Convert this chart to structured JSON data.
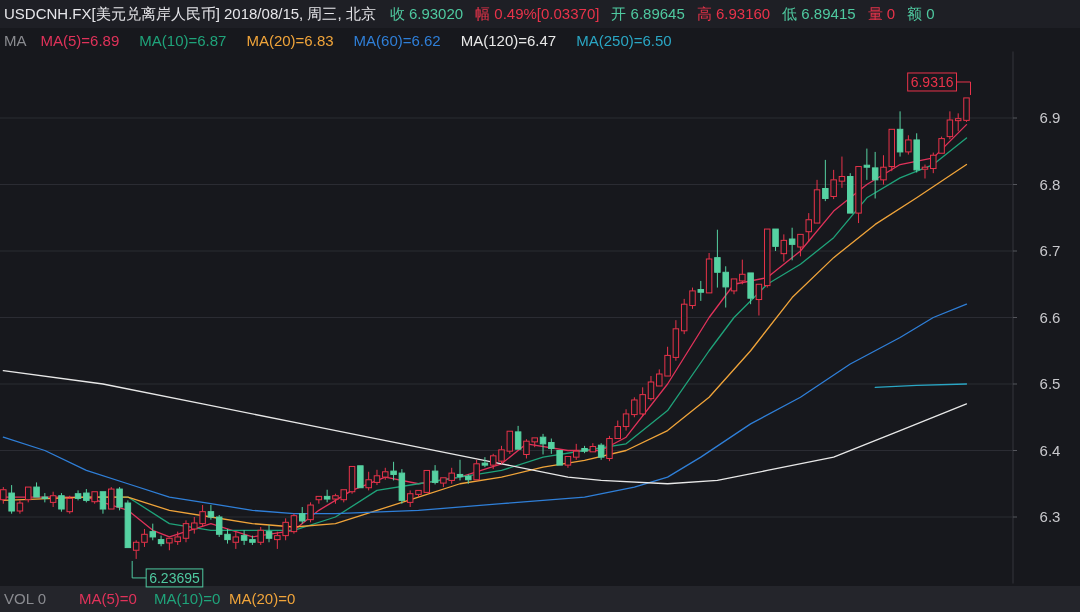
{
  "chart_data": {
    "type": "candlestick",
    "title": "USDCNH.FX[美元兑离岸人民币]  2018/08/15, 周三, 北京",
    "annotations": [
      "收 6.93020",
      "幅 0.49%[0.03370]",
      "开 6.89645",
      "高 6.93160",
      "低 6.89415",
      "量 0",
      "额 0",
      "MA",
      "VOL 0",
      "MA(5)=0",
      "MA(10)=0",
      "MA(20)=0",
      "6.9316",
      "6.23695"
    ],
    "categories": [
      null,
      null,
      null,
      null,
      null,
      null,
      null,
      null,
      null,
      null,
      null,
      null,
      null,
      null,
      null,
      null,
      null,
      null,
      null,
      null,
      null,
      null,
      null,
      null,
      null,
      null,
      null,
      null,
      null,
      null,
      null,
      null,
      null,
      null,
      null,
      null,
      null,
      null,
      null,
      null,
      null,
      null,
      null,
      null,
      null,
      null,
      null,
      null,
      null,
      null,
      null,
      null,
      null,
      null,
      null,
      null,
      null,
      null,
      null,
      null,
      null,
      null,
      null,
      null,
      null,
      null,
      null,
      null,
      null,
      null,
      null,
      null,
      null,
      null,
      null,
      null,
      null,
      null,
      null,
      null,
      null,
      null,
      null,
      null,
      null,
      null,
      null,
      null,
      null,
      null,
      null,
      null,
      null,
      null,
      null,
      null,
      null,
      null,
      null,
      null,
      null,
      null,
      null,
      null,
      null,
      null,
      null,
      null,
      null,
      null,
      null,
      null,
      null,
      null,
      null,
      null,
      null
    ],
    "ohlc": [
      [
        6.326,
        6.345,
        6.32,
        6.341
      ],
      [
        6.336,
        6.348,
        6.305,
        6.309
      ],
      [
        6.309,
        6.325,
        6.305,
        6.321
      ],
      [
        6.326,
        6.347,
        6.322,
        6.345
      ],
      [
        6.345,
        6.352,
        6.328,
        6.33
      ],
      [
        6.33,
        6.336,
        6.322,
        6.328
      ],
      [
        6.322,
        6.338,
        6.315,
        6.332
      ],
      [
        6.332,
        6.336,
        6.308,
        6.312
      ],
      [
        6.308,
        6.332,
        6.305,
        6.328
      ],
      [
        6.335,
        6.34,
        6.325,
        6.328
      ],
      [
        6.336,
        6.342,
        6.322,
        6.325
      ],
      [
        6.323,
        6.34,
        6.32,
        6.338
      ],
      [
        6.338,
        6.34,
        6.305,
        6.312
      ],
      [
        6.312,
        6.345,
        6.31,
        6.342
      ],
      [
        6.342,
        6.345,
        6.31,
        6.315
      ],
      [
        6.321,
        6.325,
        6.253,
        6.254
      ],
      [
        6.25,
        6.265,
        6.23695,
        6.262
      ],
      [
        6.262,
        6.282,
        6.255,
        6.274
      ],
      [
        6.278,
        6.29,
        6.265,
        6.27
      ],
      [
        6.266,
        6.272,
        6.256,
        6.26
      ],
      [
        6.261,
        6.27,
        6.25,
        6.268
      ],
      [
        6.263,
        6.278,
        6.258,
        6.27
      ],
      [
        6.268,
        6.295,
        6.262,
        6.29
      ],
      [
        6.282,
        6.3,
        6.275,
        6.291
      ],
      [
        6.29,
        6.318,
        6.285,
        6.308
      ],
      [
        6.308,
        6.318,
        6.296,
        6.3
      ],
      [
        6.3,
        6.303,
        6.27,
        6.274
      ],
      [
        6.274,
        6.282,
        6.26,
        6.266
      ],
      [
        6.262,
        6.278,
        6.252,
        6.27
      ],
      [
        6.272,
        6.28,
        6.258,
        6.265
      ],
      [
        6.266,
        6.272,
        6.258,
        6.262
      ],
      [
        6.262,
        6.285,
        6.258,
        6.28
      ],
      [
        6.278,
        6.288,
        6.262,
        6.268
      ],
      [
        6.266,
        6.278,
        6.252,
        6.272
      ],
      [
        6.272,
        6.298,
        6.265,
        6.292
      ],
      [
        6.278,
        6.305,
        6.275,
        6.302
      ],
      [
        6.305,
        6.315,
        6.29,
        6.294
      ],
      [
        6.296,
        6.322,
        6.292,
        6.318
      ],
      [
        6.326,
        6.333,
        6.32,
        6.331
      ],
      [
        6.331,
        6.341,
        6.322,
        6.327
      ],
      [
        6.327,
        6.335,
        6.32,
        6.332
      ],
      [
        6.326,
        6.342,
        6.322,
        6.341
      ],
      [
        6.338,
        6.378,
        6.335,
        6.376
      ],
      [
        6.377,
        6.378,
        6.343,
        6.344
      ],
      [
        6.344,
        6.368,
        6.34,
        6.356
      ],
      [
        6.352,
        6.371,
        6.348,
        6.362
      ],
      [
        6.36,
        6.374,
        6.356,
        6.368
      ],
      [
        6.369,
        6.383,
        6.355,
        6.364
      ],
      [
        6.366,
        6.372,
        6.32,
        6.325
      ],
      [
        6.322,
        6.34,
        6.315,
        6.335
      ],
      [
        6.334,
        6.342,
        6.33,
        6.34
      ],
      [
        6.337,
        6.372,
        6.335,
        6.37
      ],
      [
        6.369,
        6.378,
        6.349,
        6.352
      ],
      [
        6.351,
        6.36,
        6.345,
        6.359
      ],
      [
        6.355,
        6.374,
        6.35,
        6.366
      ],
      [
        6.364,
        6.386,
        6.355,
        6.361
      ],
      [
        6.361,
        6.364,
        6.35,
        6.356
      ],
      [
        6.356,
        6.386,
        6.354,
        6.38
      ],
      [
        6.381,
        6.39,
        6.375,
        6.378
      ],
      [
        6.378,
        6.395,
        6.372,
        6.392
      ],
      [
        6.384,
        6.407,
        6.38,
        6.401
      ],
      [
        6.399,
        6.43,
        6.395,
        6.429
      ],
      [
        6.428,
        6.437,
        6.4,
        6.402
      ],
      [
        6.394,
        6.417,
        6.388,
        6.414
      ],
      [
        6.413,
        6.42,
        6.405,
        6.419
      ],
      [
        6.42,
        6.425,
        6.394,
        6.41
      ],
      [
        6.412,
        6.418,
        6.395,
        6.403
      ],
      [
        6.4,
        6.402,
        6.376,
        6.378
      ],
      [
        6.378,
        6.393,
        6.374,
        6.391
      ],
      [
        6.39,
        6.41,
        6.386,
        6.399
      ],
      [
        6.403,
        6.407,
        6.396,
        6.399
      ],
      [
        6.398,
        6.411,
        6.396,
        6.406
      ],
      [
        6.408,
        6.411,
        6.386,
        6.39
      ],
      [
        6.388,
        6.422,
        6.384,
        6.418
      ],
      [
        6.418,
        6.445,
        6.416,
        6.436
      ],
      [
        6.436,
        6.462,
        6.43,
        6.455
      ],
      [
        6.454,
        6.48,
        6.45,
        6.476
      ],
      [
        6.455,
        6.495,
        6.452,
        6.484
      ],
      [
        6.478,
        6.512,
        6.475,
        6.503
      ],
      [
        6.497,
        6.522,
        6.495,
        6.515
      ],
      [
        6.512,
        6.556,
        6.51,
        6.543
      ],
      [
        6.54,
        6.596,
        6.535,
        6.583
      ],
      [
        6.58,
        6.628,
        6.575,
        6.62
      ],
      [
        6.618,
        6.645,
        6.613,
        6.64
      ],
      [
        6.642,
        6.655,
        6.625,
        6.638
      ],
      [
        6.637,
        6.697,
        6.635,
        6.688
      ],
      [
        6.69,
        6.732,
        6.645,
        6.668
      ],
      [
        6.668,
        6.677,
        6.615,
        6.646
      ],
      [
        6.64,
        6.66,
        6.635,
        6.658
      ],
      [
        6.655,
        6.687,
        6.65,
        6.665
      ],
      [
        6.667,
        6.668,
        6.62,
        6.629
      ],
      [
        6.627,
        6.65,
        6.603,
        6.65
      ],
      [
        6.648,
        6.735,
        6.645,
        6.733
      ],
      [
        6.733,
        6.735,
        6.7,
        6.707
      ],
      [
        6.696,
        6.725,
        6.684,
        6.716
      ],
      [
        6.718,
        6.735,
        6.686,
        6.71
      ],
      [
        6.706,
        6.726,
        6.692,
        6.725
      ],
      [
        6.729,
        6.757,
        6.714,
        6.747
      ],
      [
        6.742,
        6.807,
        6.74,
        6.792
      ],
      [
        6.794,
        6.837,
        6.775,
        6.779
      ],
      [
        6.782,
        6.822,
        6.778,
        6.807
      ],
      [
        6.805,
        6.842,
        6.795,
        6.812
      ],
      [
        6.812,
        6.817,
        6.755,
        6.757
      ],
      [
        6.757,
        6.828,
        6.742,
        6.827
      ],
      [
        6.829,
        6.854,
        6.807,
        6.826
      ],
      [
        6.825,
        6.849,
        6.779,
        6.807
      ],
      [
        6.807,
        6.844,
        6.8,
        6.826
      ],
      [
        6.827,
        6.885,
        6.82,
        6.883
      ],
      [
        6.883,
        6.91,
        6.842,
        6.849
      ],
      [
        6.849,
        6.874,
        6.845,
        6.867
      ],
      [
        6.867,
        6.877,
        6.818,
        6.822
      ],
      [
        6.823,
        6.83,
        6.809,
        6.826
      ],
      [
        6.824,
        6.848,
        6.817,
        6.844
      ],
      [
        6.847,
        6.872,
        6.845,
        6.869
      ],
      [
        6.872,
        6.91,
        6.868,
        6.897
      ],
      [
        6.896,
        6.907,
        6.88,
        6.899
      ],
      [
        6.89645,
        6.9316,
        6.89415,
        6.9302
      ]
    ],
    "series": [
      {
        "name": "MA(5)=6.89",
        "type": "line",
        "color": "#e0325a",
        "values": [
          6.33,
          null,
          null,
          null,
          null,
          6.33,
          null,
          null,
          null,
          null,
          6.33,
          null,
          null,
          null,
          null,
          6.31,
          null,
          null,
          6.28,
          null,
          6.27,
          null,
          null,
          null,
          null,
          6.29,
          null,
          null,
          null,
          null,
          6.27,
          null,
          null,
          null,
          null,
          6.28,
          null,
          null,
          6.31,
          null,
          null,
          null,
          6.34,
          null,
          null,
          null,
          6.36,
          null,
          null,
          null,
          6.35,
          null,
          null,
          null,
          null,
          6.36,
          null,
          null,
          null,
          null,
          6.38,
          null,
          null,
          6.41,
          null,
          null,
          null,
          null,
          6.4,
          null,
          null,
          null,
          6.4,
          null,
          null,
          6.42,
          null,
          null,
          null,
          null,
          6.5,
          null,
          null,
          null,
          null,
          6.6,
          null,
          null,
          6.65,
          null,
          null,
          null,
          6.66,
          null,
          null,
          null,
          6.7,
          null,
          null,
          null,
          6.76,
          null,
          null,
          null,
          6.8,
          null,
          null,
          null,
          6.83,
          null,
          null,
          null,
          6.84,
          null,
          null,
          null,
          6.89
        ]
      },
      {
        "name": "MA(10)=6.87",
        "type": "line",
        "color": "#1fa37a",
        "values": [
          null,
          null,
          null,
          null,
          null,
          null,
          null,
          null,
          null,
          null,
          6.33,
          null,
          null,
          null,
          null,
          6.33,
          null,
          null,
          null,
          null,
          6.29,
          null,
          null,
          null,
          null,
          6.28,
          null,
          null,
          null,
          null,
          6.28,
          null,
          null,
          null,
          null,
          6.28,
          null,
          null,
          null,
          null,
          6.3,
          null,
          null,
          null,
          null,
          6.34,
          null,
          null,
          null,
          null,
          6.35,
          null,
          null,
          null,
          null,
          6.36,
          null,
          null,
          null,
          null,
          6.37,
          null,
          null,
          null,
          null,
          6.39,
          null,
          null,
          null,
          null,
          6.4,
          null,
          null,
          null,
          null,
          6.41,
          null,
          null,
          null,
          null,
          6.46,
          null,
          null,
          null,
          null,
          6.55,
          null,
          null,
          6.6,
          null,
          null,
          null,
          6.65,
          null,
          null,
          null,
          6.68,
          null,
          null,
          null,
          6.72,
          null,
          null,
          null,
          6.78,
          null,
          null,
          null,
          6.81,
          null,
          null,
          null,
          6.83,
          null,
          null,
          null,
          6.87
        ]
      },
      {
        "name": "MA(20)=6.83",
        "type": "line",
        "color": "#f0a43a",
        "values": [
          6.325,
          null,
          null,
          null,
          null,
          null,
          null,
          null,
          null,
          null,
          6.33,
          null,
          null,
          null,
          null,
          6.33,
          null,
          null,
          null,
          null,
          6.31,
          null,
          null,
          null,
          null,
          6.3,
          null,
          null,
          null,
          null,
          6.29,
          null,
          null,
          null,
          null,
          6.285,
          null,
          null,
          null,
          null,
          6.29,
          null,
          null,
          null,
          null,
          6.31,
          null,
          null,
          null,
          null,
          6.33,
          null,
          null,
          null,
          null,
          6.35,
          null,
          null,
          null,
          null,
          6.36,
          null,
          null,
          null,
          null,
          6.375,
          null,
          null,
          null,
          null,
          6.385,
          null,
          null,
          null,
          null,
          6.4,
          null,
          null,
          null,
          null,
          6.43,
          null,
          null,
          null,
          null,
          6.48,
          null,
          null,
          null,
          null,
          6.55,
          null,
          null,
          null,
          null,
          6.63,
          null,
          null,
          null,
          null,
          6.69,
          null,
          null,
          null,
          null,
          6.74,
          null,
          null,
          null,
          null,
          6.78,
          null,
          null,
          null,
          null,
          null,
          6.83
        ]
      },
      {
        "name": "MA(60)=6.62",
        "type": "line",
        "color": "#2f7fd8",
        "values": [
          6.42,
          null,
          null,
          null,
          null,
          6.4,
          null,
          null,
          null,
          null,
          6.37,
          null,
          null,
          null,
          null,
          6.35,
          null,
          null,
          null,
          null,
          6.33,
          null,
          null,
          null,
          null,
          6.32,
          null,
          null,
          null,
          null,
          6.31,
          null,
          null,
          null,
          null,
          6.305,
          null,
          null,
          null,
          null,
          6.305,
          null,
          null,
          null,
          null,
          null,
          null,
          null,
          null,
          null,
          6.31,
          null,
          null,
          null,
          null,
          null,
          null,
          null,
          null,
          null,
          6.32,
          null,
          null,
          null,
          null,
          null,
          null,
          null,
          null,
          null,
          6.33,
          null,
          null,
          null,
          null,
          null,
          6.345,
          null,
          null,
          null,
          6.36,
          null,
          null,
          null,
          6.39,
          null,
          null,
          null,
          null,
          null,
          6.44,
          null,
          null,
          null,
          null,
          null,
          6.48,
          null,
          null,
          null,
          null,
          null,
          6.53,
          null,
          null,
          null,
          null,
          null,
          6.57,
          null,
          null,
          null,
          6.6,
          null,
          null,
          null,
          6.62
        ]
      },
      {
        "name": "MA(120)=6.47",
        "type": "line",
        "color": "#e8e8e8",
        "values": [
          6.52,
          null,
          null,
          null,
          null,
          null,
          null,
          null,
          null,
          null,
          null,
          null,
          6.5,
          null,
          null,
          null,
          null,
          null,
          null,
          null,
          null,
          null,
          null,
          null,
          6.47,
          null,
          null,
          null,
          null,
          null,
          null,
          null,
          null,
          null,
          null,
          null,
          6.44,
          null,
          null,
          null,
          null,
          null,
          null,
          null,
          null,
          null,
          null,
          null,
          6.41,
          null,
          null,
          null,
          null,
          null,
          null,
          null,
          null,
          null,
          null,
          null,
          6.38,
          null,
          null,
          null,
          null,
          null,
          null,
          null,
          6.36,
          null,
          null,
          null,
          6.355,
          null,
          null,
          null,
          null,
          null,
          null,
          null,
          6.35,
          null,
          null,
          null,
          null,
          null,
          6.355,
          null,
          null,
          null,
          null,
          null,
          6.37,
          null,
          null,
          null,
          null,
          null,
          null,
          null,
          6.39,
          null,
          null,
          null,
          null,
          null,
          null,
          null,
          6.43,
          null,
          null,
          null,
          null,
          null,
          null,
          null,
          6.47
        ]
      },
      {
        "name": "MA(250)=6.50",
        "type": "line",
        "color": "#2aa6c4",
        "values": [
          null,
          null,
          null,
          null,
          null,
          null,
          null,
          null,
          null,
          null,
          null,
          null,
          null,
          null,
          null,
          null,
          null,
          null,
          null,
          null,
          null,
          null,
          null,
          null,
          null,
          null,
          null,
          null,
          null,
          null,
          null,
          null,
          null,
          null,
          null,
          null,
          null,
          null,
          null,
          null,
          null,
          null,
          null,
          null,
          null,
          null,
          null,
          null,
          null,
          null,
          null,
          null,
          null,
          null,
          null,
          null,
          null,
          null,
          null,
          null,
          null,
          null,
          null,
          null,
          null,
          null,
          null,
          null,
          null,
          null,
          null,
          null,
          null,
          null,
          null,
          null,
          null,
          null,
          null,
          null,
          null,
          null,
          null,
          null,
          null,
          null,
          null,
          null,
          null,
          null,
          null,
          null,
          null,
          null,
          null,
          null,
          null,
          null,
          null,
          null,
          null,
          null,
          null,
          null,
          null,
          6.495,
          null,
          null,
          null,
          null,
          6.498,
          null,
          null,
          null,
          null,
          null,
          6.5
        ]
      }
    ],
    "ylim": [
      6.2,
      7.0
    ],
    "yticks": [
      6.3,
      6.4,
      6.5,
      6.6,
      6.7,
      6.8,
      6.9
    ],
    "grid": "y",
    "legend": "top left",
    "tick_labels": "y"
  }
}
